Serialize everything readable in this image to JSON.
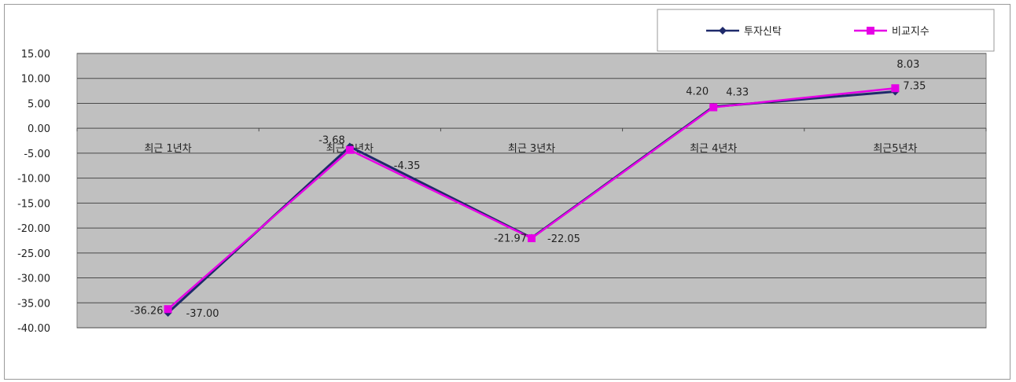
{
  "chart_data": {
    "type": "line",
    "categories": [
      "최근 1년차",
      "최근 2년차",
      "최근 3년차",
      "최근 4년차",
      "최근5년차"
    ],
    "series": [
      {
        "name": "투자신탁",
        "values": [
          -37.0,
          -3.68,
          -21.97,
          4.33,
          7.35
        ],
        "labels": [
          "-37.00",
          "-3.68",
          "-21.97",
          "4.33",
          "7.35"
        ],
        "color": "#1f2a6b",
        "marker": "diamond"
      },
      {
        "name": "비교지수",
        "values": [
          -36.26,
          -4.35,
          -22.05,
          4.2,
          8.03
        ],
        "labels": [
          "-36.26",
          "-4.35",
          "-22.05",
          "4.20",
          "8.03"
        ],
        "color": "#e600e6",
        "marker": "square"
      }
    ],
    "yticks": [
      "15.00",
      "10.00",
      "5.00",
      "0.00",
      "-5.00",
      "-10.00",
      "-15.00",
      "-20.00",
      "-25.00",
      "-30.00",
      "-35.00",
      "-40.00"
    ],
    "ylim": [
      -40,
      15
    ],
    "plot_background": "#c0c0c0",
    "grid": true,
    "legend_position": "top-right"
  }
}
